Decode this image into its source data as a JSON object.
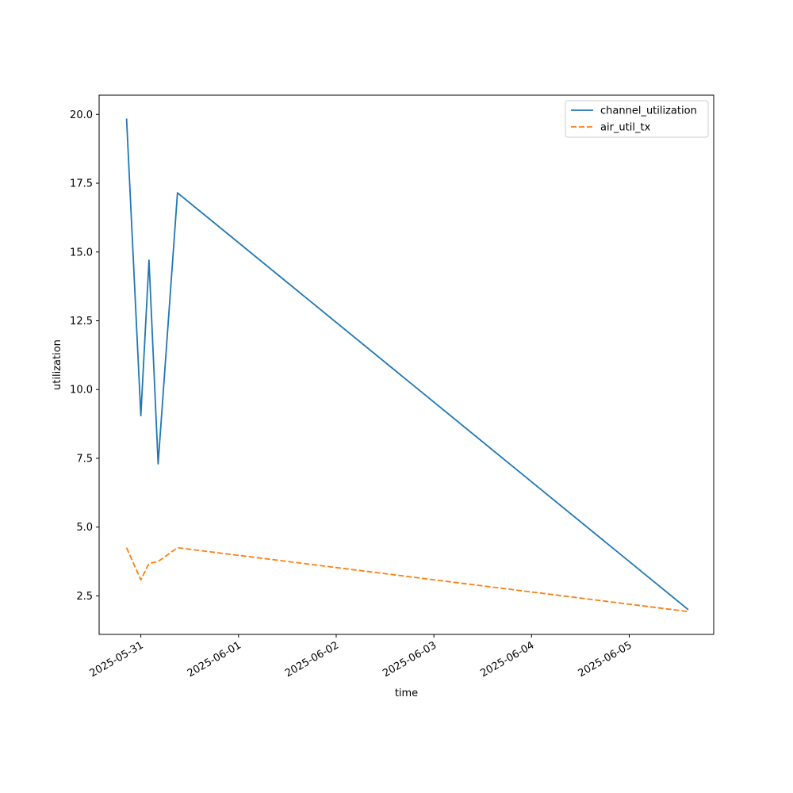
{
  "chart_data": {
    "type": "line",
    "title": "",
    "xlabel": "time",
    "ylabel": "utilization",
    "x_ticks": [
      "2025-05-31",
      "2025-06-01",
      "2025-06-02",
      "2025-06-03",
      "2025-06-04",
      "2025-06-05"
    ],
    "y_ticks": [
      "2.5",
      "5.0",
      "7.5",
      "10.0",
      "12.5",
      "15.0",
      "17.5",
      "20.0"
    ],
    "xlim": [
      "2025-05-30T13:45",
      "2025-06-05T20:45"
    ],
    "ylim": [
      1.1,
      20.7
    ],
    "legend_position": "top-right",
    "grid": false,
    "series": [
      {
        "name": "channel_utilization",
        "color": "#1f77b4",
        "dash": "solid",
        "points": [
          {
            "x": "2025-05-30T20:30",
            "y": 19.85
          },
          {
            "x": "2025-05-31T00:00",
            "y": 9.05
          },
          {
            "x": "2025-05-31T02:00",
            "y": 14.7
          },
          {
            "x": "2025-05-31T04:15",
            "y": 7.3
          },
          {
            "x": "2025-05-31T09:00",
            "y": 17.15
          },
          {
            "x": "2025-06-05T14:30",
            "y": 2.0
          }
        ]
      },
      {
        "name": "air_util_tx",
        "color": "#ff7f0e",
        "dash": "dashed",
        "points": [
          {
            "x": "2025-05-30T20:30",
            "y": 4.25
          },
          {
            "x": "2025-05-31T00:00",
            "y": 3.08
          },
          {
            "x": "2025-05-31T02:00",
            "y": 3.68
          },
          {
            "x": "2025-05-31T04:15",
            "y": 3.75
          },
          {
            "x": "2025-05-31T09:00",
            "y": 4.25
          },
          {
            "x": "2025-06-05T14:30",
            "y": 1.93
          }
        ]
      }
    ]
  }
}
